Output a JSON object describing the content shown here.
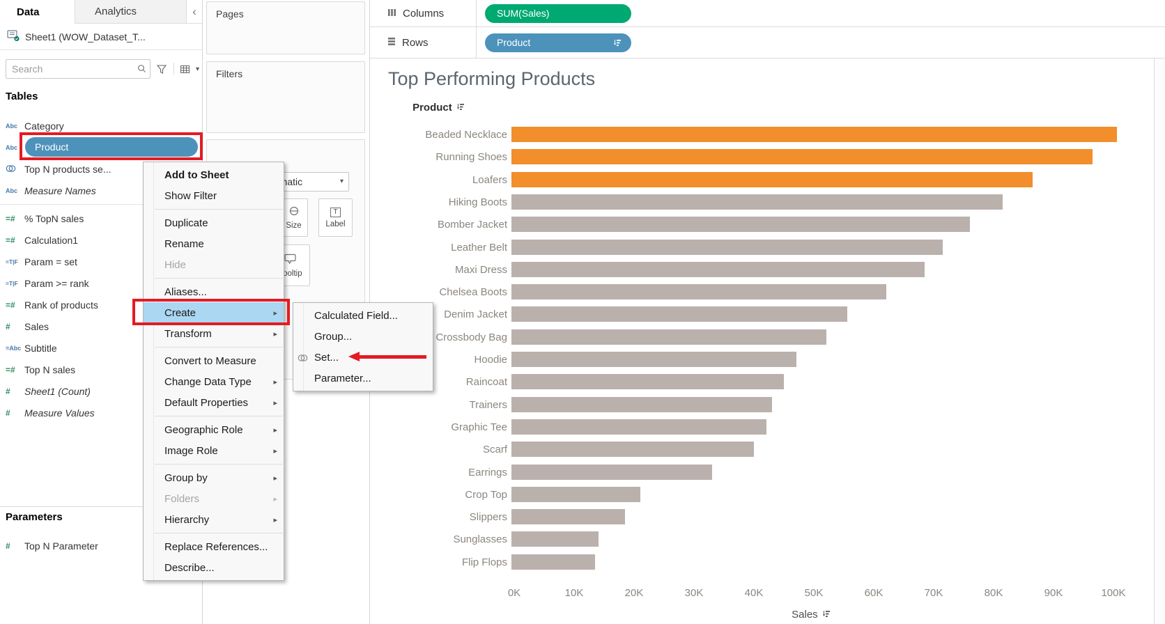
{
  "colors": {
    "bar_top": "#F28E2B",
    "bar_other": "#BAB0AC",
    "pill_measure": "#00A972",
    "pill_dimension": "#4D92BB",
    "menu_highlight": "#ABD7F2",
    "annotation_red": "#E31B23",
    "title_text": "#5A6570",
    "axis_text": "#8B867F",
    "icon_blue": "#4879A8",
    "icon_green": "#2F8C5F"
  },
  "sidebar": {
    "tabs": {
      "data": "Data",
      "analytics": "Analytics",
      "collapse": "‹"
    },
    "datasource": "Sheet1 (WOW_Dataset_T...",
    "search_placeholder": "Search",
    "tables_label": "Tables",
    "fields": [
      {
        "icon": "abc",
        "label": "Category"
      },
      {
        "icon": "abc",
        "label": "Product",
        "selected": true
      },
      {
        "icon": "set",
        "label": "Top N products se..."
      },
      {
        "icon": "abc",
        "label": "Measure Names",
        "italic": true,
        "sep_after": true
      },
      {
        "icon": "calc-num",
        "label": "% TopN sales"
      },
      {
        "icon": "calc-num",
        "label": "Calculation1"
      },
      {
        "icon": "calc-bool",
        "label": "Param = set"
      },
      {
        "icon": "calc-bool",
        "label": "Param >= rank"
      },
      {
        "icon": "calc-num",
        "label": "Rank of products"
      },
      {
        "icon": "num",
        "label": "Sales"
      },
      {
        "icon": "calc-abc",
        "label": "Subtitle"
      },
      {
        "icon": "calc-num",
        "label": "Top N sales"
      },
      {
        "icon": "num",
        "label": "Sheet1 (Count)",
        "italic": true
      },
      {
        "icon": "num",
        "label": "Measure Values",
        "italic": true
      }
    ],
    "parameters_label": "Parameters",
    "parameters": [
      {
        "icon": "num",
        "label": "Top N Parameter"
      }
    ]
  },
  "cards": {
    "pages_label": "Pages",
    "filters_label": "Filters",
    "marks": {
      "dropdown": "Automatic",
      "size_label": "Size",
      "label_label": "Label",
      "tooltip_label": "Tooltip"
    }
  },
  "shelves": {
    "columns_label": "Columns",
    "rows_label": "Rows",
    "columns_pills": [
      {
        "label": "SUM(Sales)",
        "type": "measure"
      }
    ],
    "rows_pills": [
      {
        "label": "Product",
        "type": "dimension",
        "sorted": true
      }
    ]
  },
  "context_menu": {
    "items": [
      {
        "label": "Add to Sheet",
        "bold": true
      },
      {
        "label": "Show Filter",
        "sep_after": true
      },
      {
        "label": "Duplicate"
      },
      {
        "label": "Rename"
      },
      {
        "label": "Hide",
        "disabled": true,
        "sep_after": true
      },
      {
        "label": "Aliases..."
      },
      {
        "label": "Create",
        "submenu": true,
        "highlighted": true
      },
      {
        "label": "Transform",
        "submenu": true,
        "sep_after": true
      },
      {
        "label": "Convert to Measure"
      },
      {
        "label": "Change Data Type",
        "submenu": true
      },
      {
        "label": "Default Properties",
        "submenu": true,
        "sep_after": true
      },
      {
        "label": "Geographic Role",
        "submenu": true
      },
      {
        "label": "Image Role",
        "submenu": true,
        "sep_after": true
      },
      {
        "label": "Group by",
        "submenu": true
      },
      {
        "label": "Folders",
        "submenu": true,
        "disabled": true
      },
      {
        "label": "Hierarchy",
        "submenu": true,
        "sep_after": true
      },
      {
        "label": "Replace References..."
      },
      {
        "label": "Describe..."
      }
    ]
  },
  "submenu": {
    "items": [
      {
        "label": "Calculated Field..."
      },
      {
        "label": "Group..."
      },
      {
        "label": "Set...",
        "icon": "set",
        "annotated": true
      },
      {
        "label": "Parameter..."
      }
    ]
  },
  "chart_data": {
    "type": "bar",
    "orientation": "horizontal",
    "title": "Top Performing Products",
    "row_header": "Product",
    "xlabel": "Sales",
    "xlim": [
      0,
      100000
    ],
    "x_ticks": [
      "0K",
      "10K",
      "20K",
      "30K",
      "40K",
      "50K",
      "60K",
      "70K",
      "80K",
      "90K",
      "100K"
    ],
    "grid": false,
    "legend": "none",
    "highlight_top_n": 3,
    "categories": [
      "Beaded Necklace",
      "Running Shoes",
      "Loafers",
      "Hiking Boots",
      "Bomber Jacket",
      "Leather Belt",
      "Maxi Dress",
      "Chelsea Boots",
      "Denim Jacket",
      "Crossbody Bag",
      "Hoodie",
      "Raincoat",
      "Trainers",
      "Graphic Tee",
      "Scarf",
      "Earrings",
      "Crop Top",
      "Slippers",
      "Sunglasses",
      "Flip Flops"
    ],
    "values": [
      101000,
      97000,
      87000,
      82000,
      76500,
      72000,
      69000,
      62500,
      56000,
      52500,
      47500,
      45500,
      43500,
      42500,
      40500,
      33500,
      21500,
      19000,
      14500,
      14000
    ]
  }
}
